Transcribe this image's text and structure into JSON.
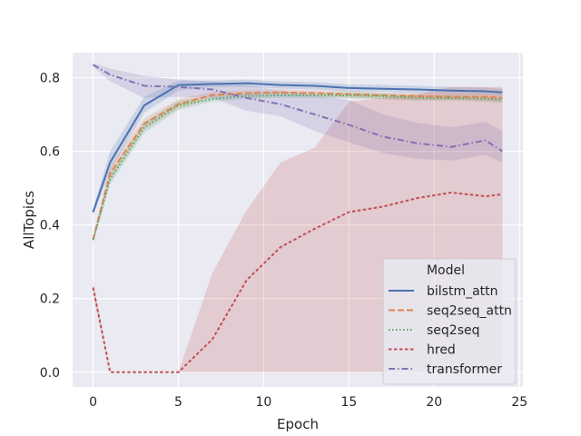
{
  "chart_data": {
    "type": "line",
    "title": "",
    "xlabel": "Epoch",
    "ylabel": "AllTopics",
    "xlim": [
      -1.2,
      25.2
    ],
    "ylim": [
      -0.04,
      0.868
    ],
    "xticks": [
      0,
      5,
      10,
      15,
      20,
      25
    ],
    "yticks": [
      0.0,
      0.2,
      0.4,
      0.6,
      0.8
    ],
    "xtick_labels": [
      "0",
      "5",
      "10",
      "15",
      "20",
      "25"
    ],
    "ytick_labels": [
      "0.0",
      "0.2",
      "0.4",
      "0.6",
      "0.8"
    ],
    "grid": true,
    "background": "#eaeaf2",
    "legend": {
      "title": "Model",
      "position": "lower-right"
    },
    "series": [
      {
        "name": "bilstm_attn",
        "color": "#4c72b0",
        "dash": "solid",
        "x": [
          0,
          1,
          3,
          5,
          7,
          9,
          11,
          13,
          15,
          17,
          19,
          21,
          23,
          24
        ],
        "y": [
          0.435,
          0.57,
          0.725,
          0.78,
          0.783,
          0.785,
          0.78,
          0.778,
          0.772,
          0.77,
          0.768,
          0.765,
          0.763,
          0.76
        ],
        "ci_lower": [
          0.425,
          0.545,
          0.705,
          0.765,
          0.775,
          0.775,
          0.77,
          0.768,
          0.762,
          0.762,
          0.758,
          0.755,
          0.753,
          0.75
        ],
        "ci_upper": [
          0.445,
          0.6,
          0.748,
          0.792,
          0.792,
          0.795,
          0.79,
          0.788,
          0.782,
          0.78,
          0.778,
          0.775,
          0.773,
          0.77
        ]
      },
      {
        "name": "seq2seq_attn",
        "color": "#dd8452",
        "dash": "dashed",
        "x": [
          0,
          1,
          3,
          5,
          7,
          9,
          11,
          13,
          15,
          17,
          19,
          21,
          23,
          24
        ],
        "y": [
          0.36,
          0.54,
          0.675,
          0.728,
          0.753,
          0.758,
          0.76,
          0.758,
          0.755,
          0.752,
          0.75,
          0.748,
          0.748,
          0.745
        ],
        "ci_lower": [
          0.35,
          0.52,
          0.66,
          0.715,
          0.745,
          0.75,
          0.752,
          0.75,
          0.745,
          0.742,
          0.74,
          0.74,
          0.738,
          0.735
        ],
        "ci_upper": [
          0.37,
          0.56,
          0.69,
          0.742,
          0.762,
          0.766,
          0.768,
          0.766,
          0.763,
          0.76,
          0.758,
          0.756,
          0.756,
          0.753
        ]
      },
      {
        "name": "seq2seq",
        "color": "#55a868",
        "dash": "dotted",
        "x": [
          0,
          1,
          3,
          5,
          7,
          9,
          11,
          13,
          15,
          17,
          19,
          21,
          23,
          24
        ],
        "y": [
          0.36,
          0.525,
          0.665,
          0.725,
          0.742,
          0.75,
          0.752,
          0.752,
          0.752,
          0.75,
          0.745,
          0.745,
          0.743,
          0.74
        ],
        "ci_lower": [
          0.35,
          0.51,
          0.65,
          0.712,
          0.735,
          0.742,
          0.745,
          0.745,
          0.745,
          0.742,
          0.738,
          0.738,
          0.735,
          0.732
        ],
        "ci_upper": [
          0.37,
          0.54,
          0.68,
          0.738,
          0.75,
          0.758,
          0.76,
          0.76,
          0.76,
          0.758,
          0.753,
          0.753,
          0.75,
          0.748
        ]
      },
      {
        "name": "hred",
        "color": "#c44e52",
        "dash": "dashed-fine",
        "x": [
          0,
          1,
          3,
          5,
          7,
          9,
          11,
          13,
          15,
          17,
          19,
          21,
          23,
          24
        ],
        "y": [
          0.23,
          0.0,
          0.0,
          0.0,
          0.09,
          0.25,
          0.34,
          0.39,
          0.435,
          0.45,
          0.473,
          0.488,
          0.478,
          0.483
        ],
        "ci_lower": [
          0.21,
          0.0,
          0.0,
          0.0,
          0.0,
          0.0,
          0.0,
          0.0,
          0.0,
          0.0,
          0.0,
          0.0,
          0.0,
          0.0
        ],
        "ci_upper": [
          0.25,
          0.0,
          0.0,
          0.0,
          0.27,
          0.44,
          0.57,
          0.61,
          0.735,
          0.745,
          0.755,
          0.775,
          0.775,
          0.775
        ]
      },
      {
        "name": "transformer",
        "color": "#8172b3",
        "dash": "dashdot",
        "x": [
          0,
          1,
          3,
          5,
          7,
          9,
          11,
          13,
          15,
          17,
          19,
          21,
          23,
          24
        ],
        "y": [
          0.835,
          0.808,
          0.778,
          0.775,
          0.768,
          0.745,
          0.728,
          0.7,
          0.672,
          0.64,
          0.622,
          0.612,
          0.63,
          0.6
        ],
        "ci_lower": [
          0.83,
          0.79,
          0.745,
          0.748,
          0.745,
          0.71,
          0.695,
          0.655,
          0.625,
          0.595,
          0.58,
          0.575,
          0.59,
          0.57
        ],
        "ci_upper": [
          0.84,
          0.825,
          0.805,
          0.795,
          0.79,
          0.78,
          0.765,
          0.752,
          0.74,
          0.7,
          0.678,
          0.665,
          0.68,
          0.655
        ]
      }
    ]
  }
}
